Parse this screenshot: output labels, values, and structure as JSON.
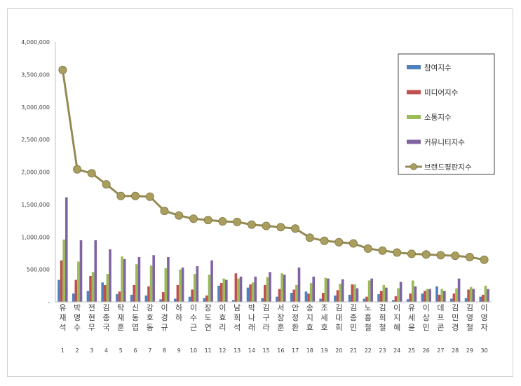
{
  "chart_data": {
    "type": "bar",
    "title": "",
    "xlabel": "",
    "ylabel": "",
    "ylim": [
      0,
      4000000
    ],
    "yticks": [
      "-",
      "500,000",
      "1,000,000",
      "1,500,000",
      "2,000,000",
      "2,500,000",
      "3,000,000",
      "3,500,000",
      "4,000,000"
    ],
    "ytick_values": [
      0,
      500000,
      1000000,
      1500000,
      2000000,
      2500000,
      3000000,
      3500000,
      4000000
    ],
    "grid": false,
    "legend_position": "top-right",
    "categories": [
      "유재석",
      "박명수",
      "전현무",
      "김종국",
      "탁재훈",
      "신동엽",
      "강호동",
      "이경규",
      "하하",
      "이수근",
      "장도연",
      "이효리",
      "남희석",
      "박나래",
      "김구라",
      "서장훈",
      "안정환",
      "송지효",
      "조세호",
      "김대희",
      "김종민",
      "노홍철",
      "김희철",
      "이지혜",
      "유세윤",
      "이상민",
      "데프콘",
      "김민경",
      "김영철",
      "이영자"
    ],
    "ranks": [
      "1",
      "2",
      "3",
      "4",
      "5",
      "6",
      "7",
      "8",
      "9",
      "10",
      "11",
      "12",
      "13",
      "14",
      "15",
      "16",
      "17",
      "18",
      "19",
      "20",
      "21",
      "22",
      "23",
      "24",
      "25",
      "26",
      "27",
      "28",
      "29",
      "30"
    ],
    "series": [
      {
        "name": "참여지수",
        "kind": "bar",
        "color": "#4f81bd",
        "values": [
          340000,
          130000,
          170000,
          300000,
          120000,
          110000,
          100000,
          40000,
          50000,
          80000,
          60000,
          250000,
          30000,
          220000,
          60000,
          80000,
          140000,
          160000,
          50000,
          100000,
          110000,
          50000,
          120000,
          30000,
          40000,
          130000,
          240000,
          50000,
          60000,
          80000
        ]
      },
      {
        "name": "미디어지수",
        "kind": "bar",
        "color": "#c0504d",
        "values": [
          640000,
          340000,
          400000,
          260000,
          160000,
          260000,
          240000,
          150000,
          260000,
          190000,
          100000,
          290000,
          440000,
          270000,
          260000,
          200000,
          190000,
          130000,
          140000,
          180000,
          270000,
          80000,
          170000,
          90000,
          130000,
          170000,
          110000,
          130000,
          190000,
          110000
        ]
      },
      {
        "name": "소통지수",
        "kind": "bar",
        "color": "#9bbb59",
        "values": [
          960000,
          620000,
          460000,
          430000,
          700000,
          580000,
          560000,
          520000,
          500000,
          430000,
          420000,
          360000,
          360000,
          300000,
          380000,
          440000,
          260000,
          290000,
          370000,
          280000,
          270000,
          330000,
          260000,
          210000,
          330000,
          200000,
          200000,
          210000,
          230000,
          250000
        ]
      },
      {
        "name": "커뮤니티지수",
        "kind": "bar",
        "color": "#8064a2",
        "values": [
          1610000,
          950000,
          950000,
          810000,
          660000,
          690000,
          720000,
          690000,
          530000,
          550000,
          640000,
          340000,
          390000,
          390000,
          460000,
          420000,
          530000,
          390000,
          360000,
          350000,
          210000,
          360000,
          220000,
          310000,
          240000,
          200000,
          170000,
          360000,
          200000,
          200000
        ]
      },
      {
        "name": "브랜드평판지수",
        "kind": "line",
        "color": "#948a54",
        "values": [
          3570000,
          2040000,
          1980000,
          1810000,
          1630000,
          1630000,
          1620000,
          1400000,
          1330000,
          1280000,
          1260000,
          1240000,
          1230000,
          1190000,
          1170000,
          1150000,
          1130000,
          990000,
          940000,
          920000,
          900000,
          820000,
          790000,
          760000,
          740000,
          730000,
          720000,
          710000,
          690000,
          650000
        ]
      }
    ]
  }
}
